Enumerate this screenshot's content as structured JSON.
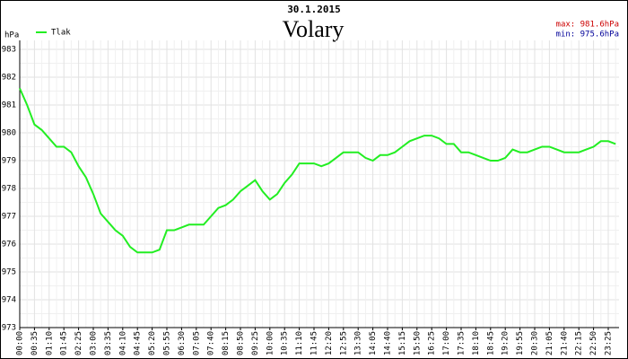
{
  "chart_data": {
    "type": "line",
    "date": "30.1.2015",
    "title": "Volary",
    "max_label": "max: 981.6hPa",
    "min_label": "min: 975.6hPa",
    "y_label": "hPa",
    "ylim": [
      973,
      983
    ],
    "yticks": [
      973,
      974,
      975,
      976,
      977,
      978,
      979,
      980,
      981,
      982,
      983
    ],
    "grid": true,
    "categories": [
      "00:00",
      null,
      "00:35",
      null,
      "01:10",
      null,
      "01:45",
      null,
      "02:25",
      null,
      "03:00",
      null,
      "03:35",
      null,
      "04:10",
      null,
      "04:45",
      null,
      "05:20",
      null,
      "05:55",
      null,
      "06:30",
      null,
      "07:05",
      null,
      "07:40",
      null,
      "08:15",
      null,
      "08:50",
      null,
      "09:25",
      null,
      "10:00",
      null,
      "10:35",
      null,
      "11:10",
      null,
      "11:45",
      null,
      "12:20",
      null,
      "12:55",
      null,
      "13:30",
      null,
      "14:05",
      null,
      "14:40",
      null,
      "15:15",
      null,
      "15:50",
      null,
      "16:25",
      null,
      "17:00",
      null,
      "17:35",
      null,
      "18:10",
      null,
      "18:45",
      null,
      "19:20",
      null,
      "19:55",
      null,
      "20:30",
      null,
      "21:05",
      null,
      "21:40",
      null,
      "22:15",
      null,
      "22:50",
      null,
      "23:25",
      null
    ],
    "series": [
      {
        "name": "Tlak",
        "color": "#22ee22",
        "values": [
          981.6,
          981.0,
          980.3,
          980.1,
          979.8,
          979.5,
          979.5,
          979.3,
          978.8,
          978.4,
          977.8,
          977.1,
          976.8,
          976.5,
          976.3,
          975.9,
          975.7,
          975.7,
          975.7,
          975.8,
          976.5,
          976.5,
          976.6,
          976.7,
          976.7,
          976.7,
          977.0,
          977.3,
          977.4,
          977.6,
          977.9,
          978.1,
          978.3,
          977.9,
          977.6,
          977.8,
          978.2,
          978.5,
          978.9,
          978.9,
          978.9,
          978.8,
          978.9,
          979.1,
          979.3,
          979.3,
          979.3,
          979.1,
          979.0,
          979.2,
          979.2,
          979.3,
          979.5,
          979.7,
          979.8,
          979.9,
          979.9,
          979.8,
          979.6,
          979.6,
          979.3,
          979.3,
          979.2,
          979.1,
          979.0,
          979.0,
          979.1,
          979.4,
          979.3,
          979.3,
          979.4,
          979.5,
          979.5,
          979.4,
          979.3,
          979.3,
          979.3,
          979.4,
          979.5,
          979.7,
          979.7,
          979.6
        ]
      }
    ]
  }
}
